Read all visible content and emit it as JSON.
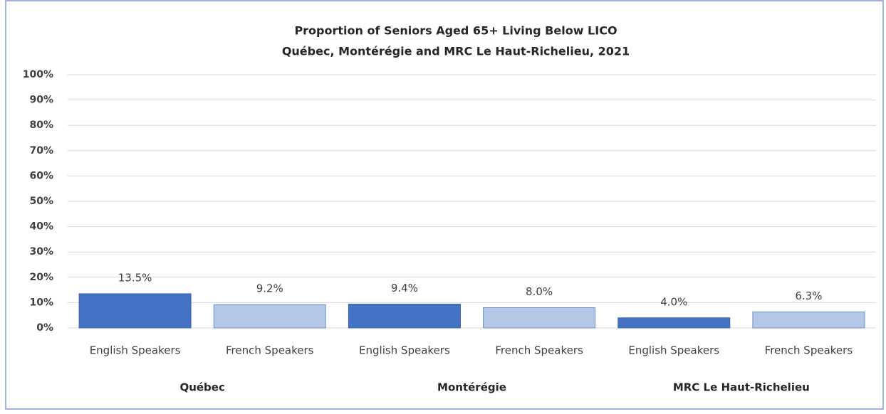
{
  "chart_data": {
    "type": "bar",
    "title": "Proportion of Seniors Aged 65+ Living Below LICO",
    "subtitle": "Québec, Montérégie and MRC Le Haut-Richelieu,  2021",
    "categories": [
      "English Speakers",
      "French Speakers",
      "English Speakers",
      "French Speakers",
      "English Speakers",
      "French Speakers"
    ],
    "groups": [
      "Québec",
      "Montérégie",
      "MRC Le Haut-Richelieu"
    ],
    "values": [
      13.5,
      9.2,
      9.4,
      8.0,
      4.0,
      6.3
    ],
    "value_labels": [
      "13.5%",
      "9.2%",
      "9.4%",
      "8.0%",
      "4.0%",
      "6.3%"
    ],
    "colors": [
      "#4472c4",
      "#b4c7e7",
      "#4472c4",
      "#b4c7e7",
      "#4472c4",
      "#b4c7e7"
    ],
    "ylim": [
      0,
      100
    ],
    "yticks": [
      {
        "value": 0,
        "label": "0%"
      },
      {
        "value": 10,
        "label": "10%"
      },
      {
        "value": 20,
        "label": "20%"
      },
      {
        "value": 30,
        "label": "30%"
      },
      {
        "value": 40,
        "label": "40%"
      },
      {
        "value": 50,
        "label": "50%"
      },
      {
        "value": 60,
        "label": "60%"
      },
      {
        "value": 70,
        "label": "70%"
      },
      {
        "value": 80,
        "label": "80%"
      },
      {
        "value": 90,
        "label": "90%"
      },
      {
        "value": 100,
        "label": "100%"
      }
    ],
    "grid": true
  }
}
